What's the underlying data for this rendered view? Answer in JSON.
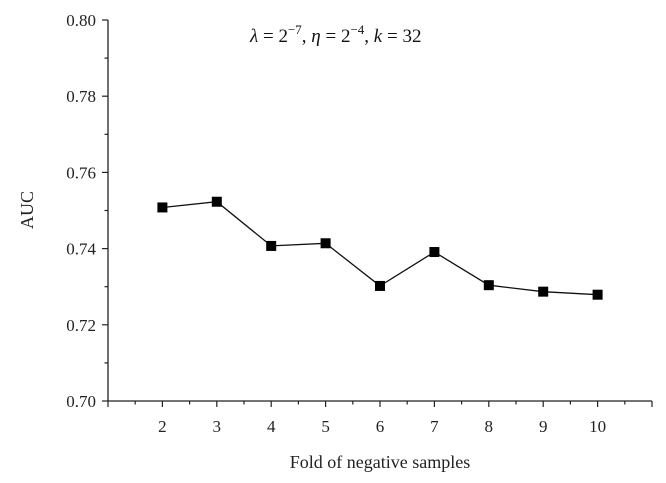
{
  "chart_data": {
    "type": "line",
    "annotation": {
      "lambda_sym": "λ",
      "eq": " = ",
      "base": "2",
      "lambda_exp": "−7",
      "sep": ", ",
      "eta_sym": "η",
      "eta_exp": "−4",
      "k_sym": "k",
      "k_val": "32"
    },
    "xlabel": "Fold of negative samples",
    "ylabel": "AUC",
    "xlim": [
      1,
      11
    ],
    "ylim": [
      0.7,
      0.8
    ],
    "x_ticks": [
      "2",
      "3",
      "4",
      "5",
      "6",
      "7",
      "8",
      "9",
      "10"
    ],
    "y_ticks": [
      "0.70",
      "0.72",
      "0.74",
      "0.76",
      "0.78",
      "0.80"
    ],
    "grid": false,
    "series": [
      {
        "x": [
          2,
          3,
          4,
          5,
          6,
          7,
          8,
          9,
          10
        ],
        "values": [
          0.7508,
          0.7523,
          0.7407,
          0.7414,
          0.7302,
          0.7391,
          0.7304,
          0.7287,
          0.7279
        ],
        "color": "#000000",
        "marker": "square"
      }
    ]
  }
}
